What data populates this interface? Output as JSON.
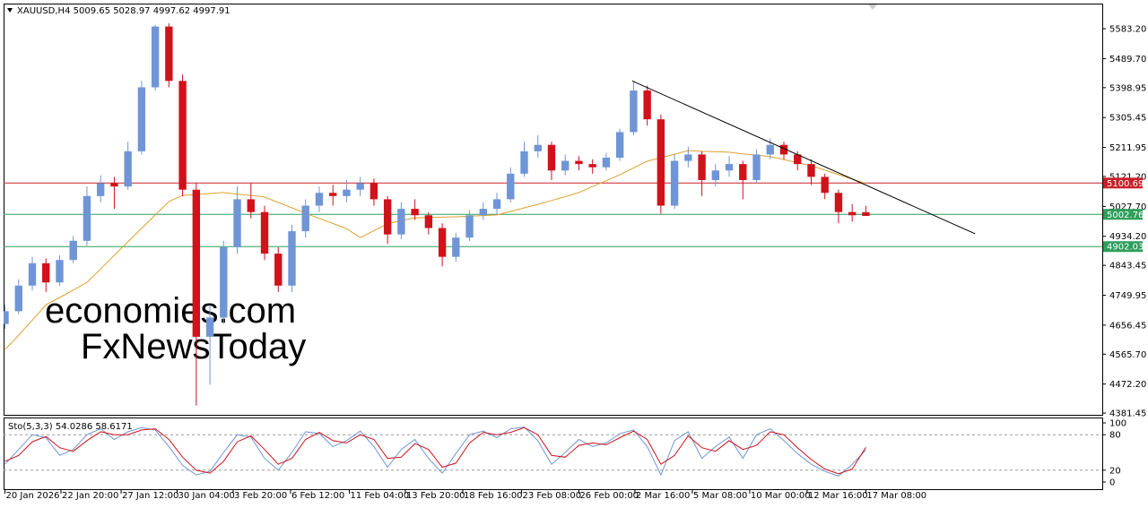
{
  "chart_data": {
    "type": "candlestick",
    "symbol": "XAUUSD,H4",
    "bull_color": "#6f95d6",
    "bear_color": "#d0121b",
    "candles": [
      [
        4660,
        4720,
        4645,
        4700
      ],
      [
        4700,
        4800,
        4690,
        4780
      ],
      [
        4780,
        4870,
        4765,
        4850
      ],
      [
        4850,
        4865,
        4760,
        4790
      ],
      [
        4790,
        4875,
        4780,
        4860
      ],
      [
        4860,
        4935,
        4850,
        4920
      ],
      [
        4920,
        5090,
        4905,
        5060
      ],
      [
        5060,
        5125,
        5040,
        5100
      ],
      [
        5100,
        5120,
        5020,
        5090
      ],
      [
        5090,
        5230,
        5080,
        5200
      ],
      [
        5200,
        5420,
        5190,
        5400
      ],
      [
        5400,
        5595,
        5390,
        5590
      ],
      [
        5590,
        5600,
        5400,
        5420
      ],
      [
        5420,
        5440,
        5060,
        5080
      ],
      [
        5080,
        5100,
        4405,
        4620
      ],
      [
        4620,
        4720,
        4470,
        4680
      ],
      [
        4680,
        4920,
        4660,
        4900
      ],
      [
        4900,
        5090,
        4880,
        5050
      ],
      [
        5050,
        5100,
        4990,
        5010
      ],
      [
        5010,
        5030,
        4860,
        4880
      ],
      [
        4880,
        4900,
        4760,
        4780
      ],
      [
        4780,
        4970,
        4760,
        4950
      ],
      [
        4950,
        5050,
        4930,
        5030
      ],
      [
        5030,
        5090,
        5010,
        5070
      ],
      [
        5070,
        5095,
        5030,
        5060
      ],
      [
        5060,
        5110,
        5040,
        5080
      ],
      [
        5080,
        5120,
        5060,
        5100
      ],
      [
        5100,
        5115,
        5030,
        5050
      ],
      [
        5050,
        5060,
        4910,
        4940
      ],
      [
        4940,
        5040,
        4925,
        5020
      ],
      [
        5020,
        5050,
        4985,
        5000
      ],
      [
        5000,
        5010,
        4940,
        4960
      ],
      [
        4960,
        4975,
        4840,
        4870
      ],
      [
        4870,
        4945,
        4855,
        4930
      ],
      [
        4930,
        5015,
        4920,
        5000
      ],
      [
        5000,
        5040,
        4985,
        5020
      ],
      [
        5020,
        5070,
        5005,
        5050
      ],
      [
        5050,
        5150,
        5040,
        5130
      ],
      [
        5130,
        5230,
        5120,
        5200
      ],
      [
        5200,
        5250,
        5180,
        5220
      ],
      [
        5220,
        5230,
        5110,
        5140
      ],
      [
        5140,
        5190,
        5125,
        5170
      ],
      [
        5170,
        5185,
        5140,
        5160
      ],
      [
        5160,
        5175,
        5130,
        5150
      ],
      [
        5150,
        5195,
        5140,
        5180
      ],
      [
        5180,
        5270,
        5170,
        5260
      ],
      [
        5260,
        5420,
        5250,
        5390
      ],
      [
        5390,
        5405,
        5280,
        5300
      ],
      [
        5300,
        5315,
        5005,
        5030
      ],
      [
        5030,
        5190,
        5020,
        5170
      ],
      [
        5170,
        5215,
        5150,
        5190
      ],
      [
        5190,
        5200,
        5060,
        5110
      ],
      [
        5110,
        5160,
        5090,
        5140
      ],
      [
        5140,
        5185,
        5120,
        5160
      ],
      [
        5160,
        5170,
        5050,
        5110
      ],
      [
        5110,
        5205,
        5100,
        5190
      ],
      [
        5190,
        5240,
        5175,
        5220
      ],
      [
        5220,
        5230,
        5175,
        5190
      ],
      [
        5190,
        5200,
        5140,
        5160
      ],
      [
        5160,
        5175,
        5095,
        5120
      ],
      [
        5120,
        5130,
        5050,
        5070
      ],
      [
        5070,
        5080,
        4975,
        5010
      ],
      [
        5010,
        5035,
        4980,
        5000
      ],
      [
        5009.65,
        5028.97,
        4997.62,
        4997.91
      ]
    ],
    "ma": {
      "color": "#e0a030",
      "values": [
        4580,
        4625,
        4672,
        4720,
        4743,
        4766,
        4790,
        4832,
        4875,
        4917,
        4959,
        5001,
        5043,
        5062,
        5065,
        5068,
        5071,
        5066,
        5062,
        5057,
        5040,
        5023,
        5006,
        4990,
        4974,
        4958,
        4930,
        4952,
        4973,
        4983,
        4992,
        4993,
        4994,
        4995,
        4997,
        4999,
        5001,
        5012,
        5023,
        5034,
        5046,
        5058,
        5071,
        5090,
        5108,
        5127,
        5148,
        5169,
        5180,
        5191,
        5202,
        5200,
        5199,
        5197,
        5192,
        5188,
        5183,
        5174,
        5164,
        5155,
        5141,
        5127,
        5113,
        5099
      ]
    },
    "levels": [
      {
        "value": 5100.69,
        "color": "#c8202a"
      },
      {
        "value": 5002.76,
        "color": "#2e9e5b"
      },
      {
        "value": 4902.03,
        "color": "#2e9e5b"
      }
    ],
    "trendline": {
      "color": "#000000",
      "points": [
        [
          45.9,
          5420
        ],
        [
          71,
          4942
        ]
      ]
    },
    "xlim": [
      -0.1,
      80.3
    ],
    "ylim": [
      4376,
      5659
    ],
    "yticks": [
      {
        "value": 5583.2,
        "label": "5583.20"
      },
      {
        "value": 5489.7,
        "label": "5489.70"
      },
      5398.95,
      5305.45,
      5211.95,
      {
        "value": 5121.2,
        "label": "5121.20"
      },
      {
        "value": 5027.7,
        "label": "5027.70"
      },
      {
        "value": 4934.2,
        "label": "4934.20"
      },
      4843.45,
      4749.95,
      4656.45,
      {
        "value": 4565.7,
        "label": "4565.70"
      },
      {
        "value": 4472.2,
        "label": "4472.20"
      },
      4381.45
    ],
    "xticks": [
      {
        "value": 0,
        "label": "20 Jan 2026"
      },
      {
        "value": 4.1,
        "label": "22 Jan 20:00"
      },
      {
        "value": 8.5,
        "label": "27 Jan 12:00"
      },
      {
        "value": 12.6,
        "label": "30 Jan 04:00"
      },
      {
        "value": 16.7,
        "label": "3 Feb 20:00"
      },
      {
        "value": 20.9,
        "label": "6 Feb 12:00"
      },
      {
        "value": 25.2,
        "label": "11 Feb 04:00"
      },
      {
        "value": 29.3,
        "label": "13 Feb 20:00"
      },
      {
        "value": 33.5,
        "label": "18 Feb 16:00"
      },
      {
        "value": 37.8,
        "label": "23 Feb 08:00"
      },
      {
        "value": 42,
        "label": "26 Feb 00:00"
      },
      {
        "value": 46.1,
        "label": "2 Mar 16:00"
      },
      {
        "value": 50.3,
        "label": "5 Mar 08:00"
      },
      {
        "value": 54.5,
        "label": "10 Mar 00:00"
      },
      {
        "value": 58.7,
        "label": "12 Mar 16:00"
      },
      {
        "value": 63,
        "label": "17 Mar 08:00"
      }
    ],
    "watermark": {
      "line1": "economies.com",
      "line2": "FxNewsToday"
    },
    "indicator": {
      "name": "Sto(5,3,3)",
      "ylim": [
        0,
        100
      ],
      "yticks": [
        100,
        80,
        20,
        0
      ],
      "levels": [
        80,
        20
      ],
      "series": [
        {
          "color": "#6f95d6",
          "values": [
            30,
            55,
            80,
            75,
            45,
            55,
            80,
            90,
            72,
            85,
            92,
            88,
            60,
            28,
            12,
            18,
            50,
            80,
            76,
            40,
            20,
            50,
            85,
            82,
            60,
            70,
            86,
            60,
            25,
            55,
            72,
            40,
            15,
            48,
            80,
            86,
            75,
            90,
            93,
            70,
            30,
            50,
            72,
            60,
            66,
            82,
            88,
            60,
            12,
            70,
            85,
            40,
            60,
            76,
            40,
            80,
            90,
            70,
            48,
            30,
            18,
            10,
            30,
            54.0286
          ]
        },
        {
          "color": "#d0121b",
          "values": [
            35,
            45,
            68,
            77,
            58,
            52,
            70,
            85,
            80,
            80,
            88,
            90,
            72,
            42,
            20,
            15,
            35,
            68,
            78,
            55,
            30,
            40,
            72,
            84,
            70,
            66,
            80,
            72,
            40,
            42,
            65,
            55,
            25,
            32,
            66,
            84,
            80,
            84,
            92,
            80,
            45,
            42,
            62,
            66,
            63,
            75,
            86,
            72,
            30,
            45,
            78,
            58,
            52,
            70,
            55,
            62,
            85,
            80,
            58,
            38,
            22,
            14,
            22,
            58.6171
          ]
        }
      ]
    }
  }
}
